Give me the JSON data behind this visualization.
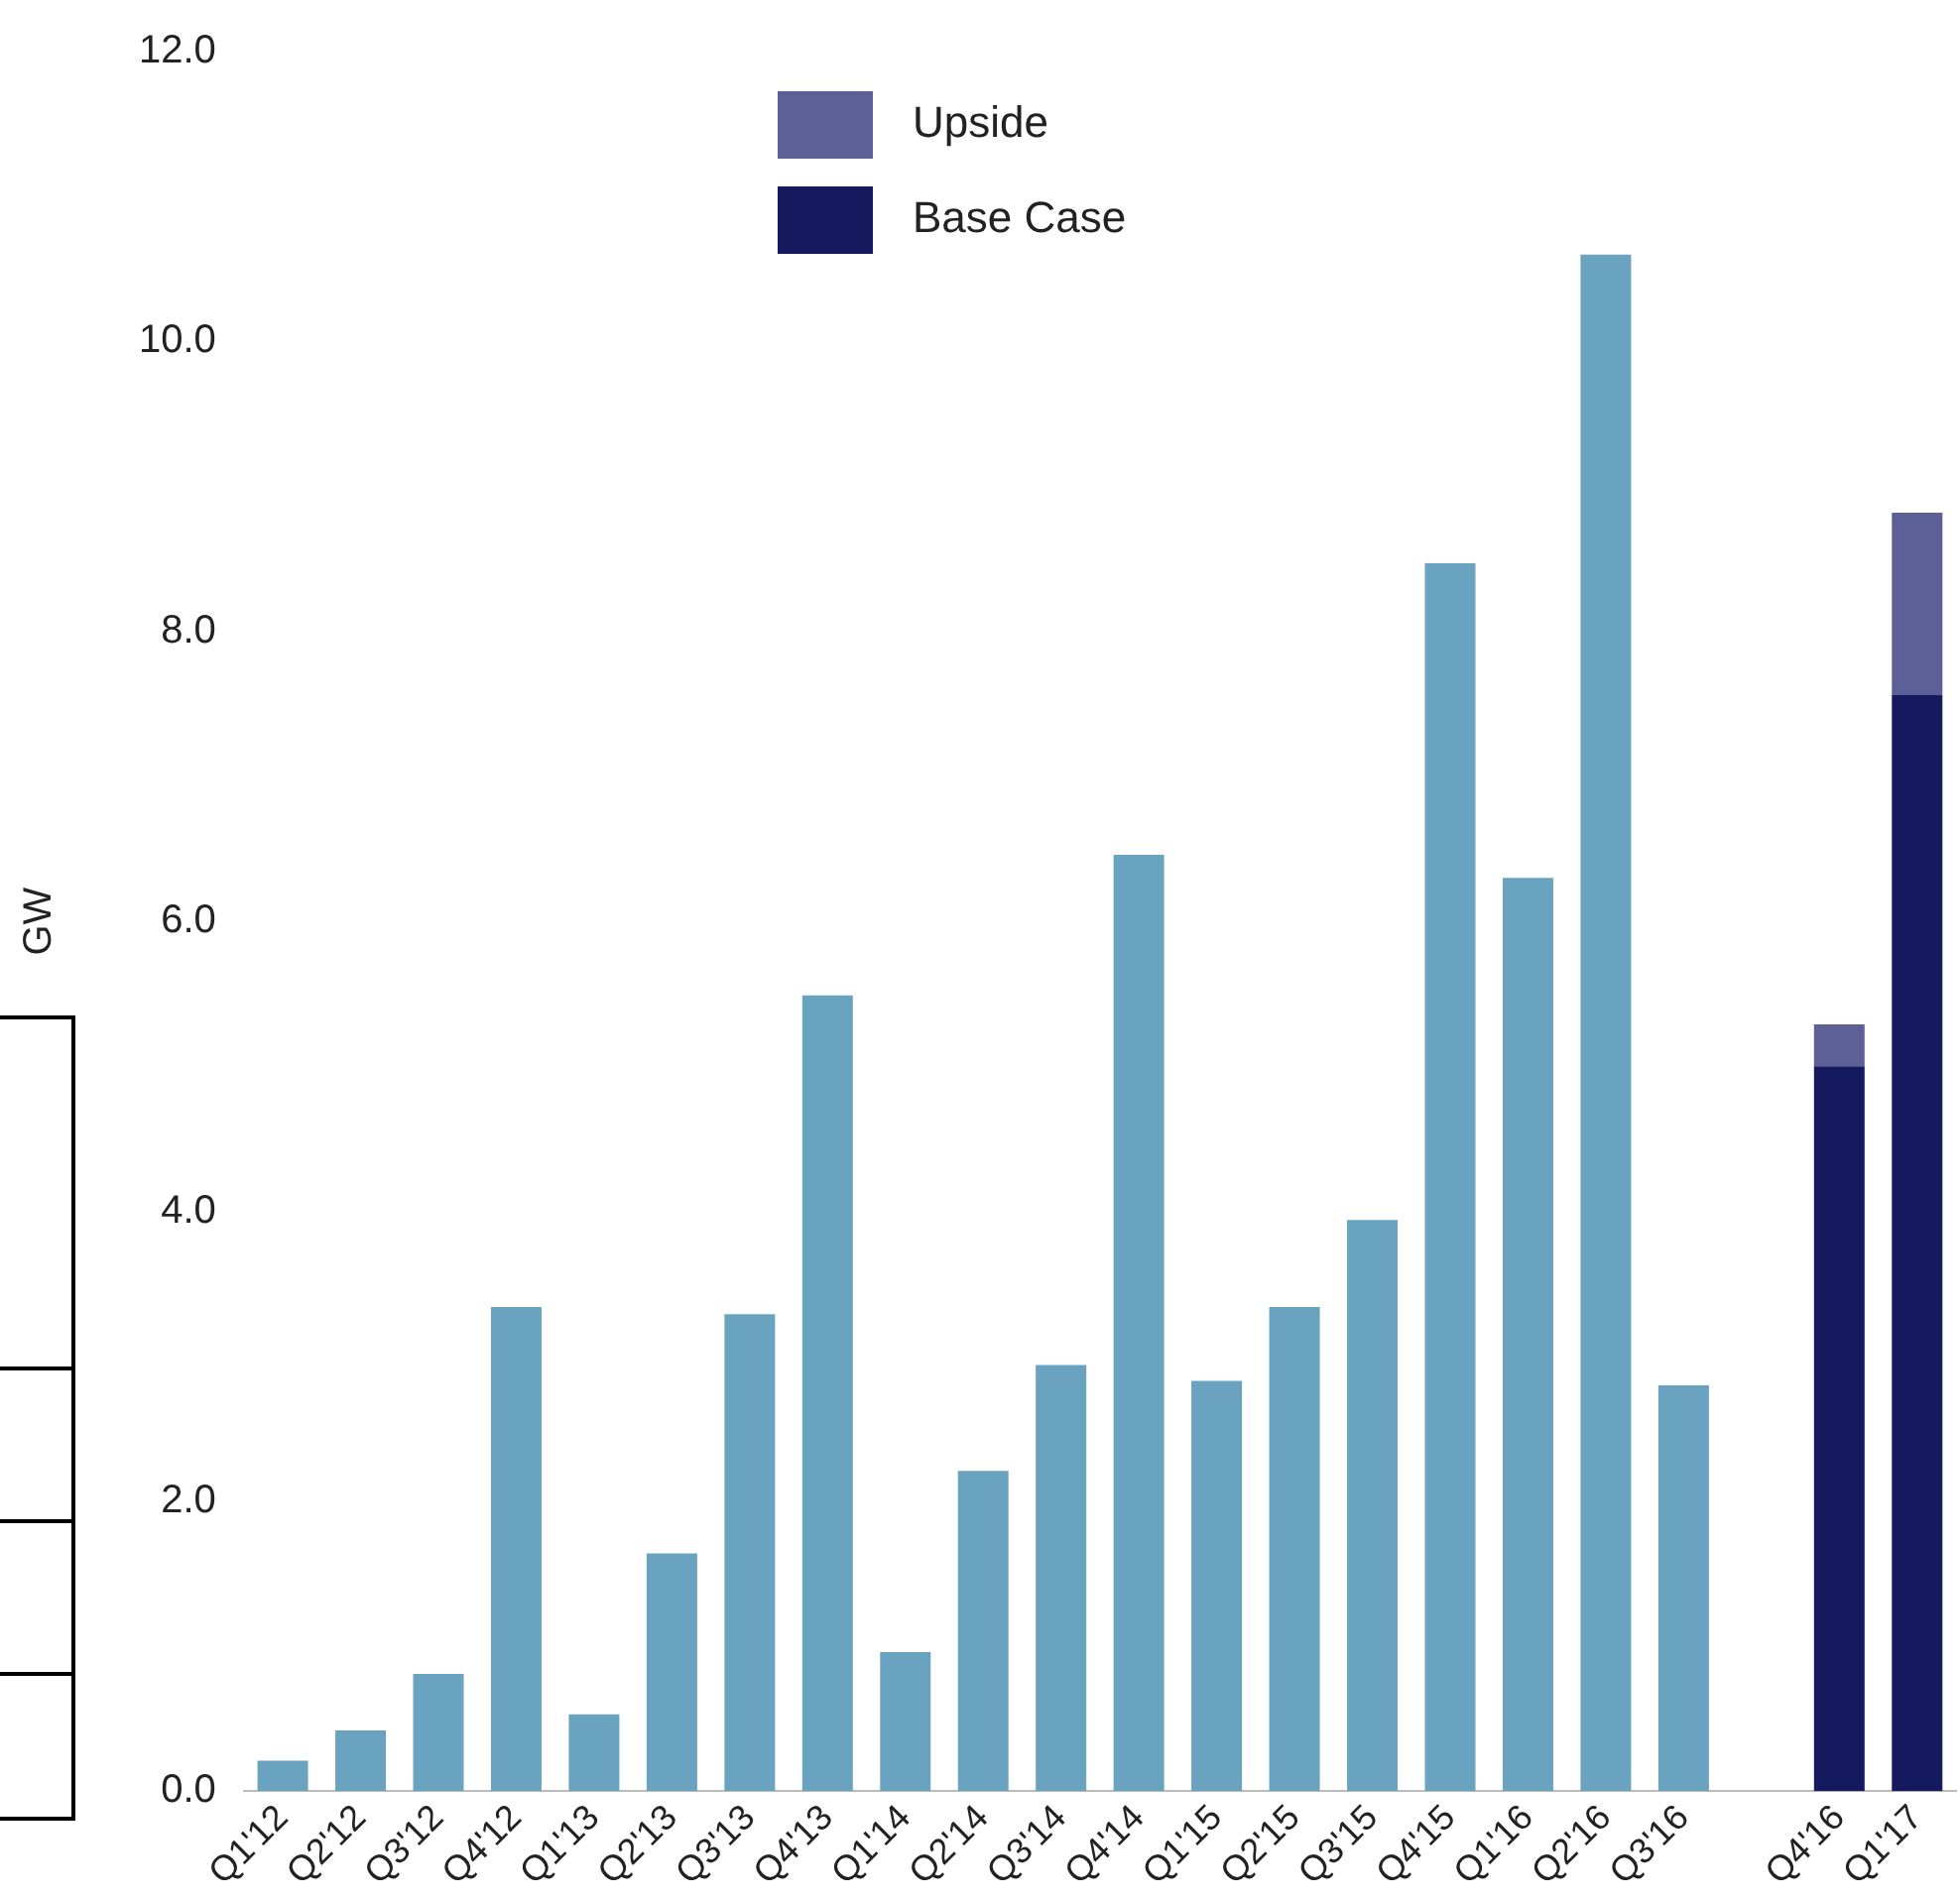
{
  "chart_data": {
    "type": "bar",
    "ylabel": "GW",
    "stacked": true,
    "categories": [
      "Q1'12",
      "Q2'12",
      "Q3'12",
      "Q4'12",
      "Q1'13",
      "Q2'13",
      "Q3'13",
      "Q4'13",
      "Q1'14",
      "Q2'14",
      "Q3'14",
      "Q4'14",
      "Q1'15",
      "Q2'15",
      "Q3'15",
      "Q4'15",
      "Q1'16",
      "Q2'16",
      "Q3'16",
      null,
      "Q4'16",
      "Q1'17"
    ],
    "series": [
      {
        "color": "#6aa3bf",
        "values": [
          0.21,
          0.42,
          0.81,
          3.34,
          0.53,
          1.64,
          3.29,
          5.49,
          0.96,
          2.21,
          2.94,
          6.46,
          2.83,
          3.34,
          3.94,
          8.47,
          6.3,
          10.6,
          2.8,
          null,
          null,
          null
        ]
      },
      {
        "name": "Base Case",
        "color": "#151a5e",
        "values": [
          null,
          null,
          null,
          null,
          null,
          null,
          null,
          null,
          null,
          null,
          null,
          null,
          null,
          null,
          null,
          null,
          null,
          null,
          null,
          null,
          5.0,
          7.56
        ]
      },
      {
        "name": "Upside",
        "color": "#5c6096",
        "values": [
          null,
          null,
          null,
          null,
          null,
          null,
          null,
          null,
          null,
          null,
          null,
          null,
          null,
          null,
          null,
          null,
          null,
          null,
          null,
          null,
          0.29,
          1.26
        ]
      }
    ],
    "ylim": [
      0,
      12
    ],
    "yticks": [
      {
        "value": 0,
        "label": "0.0"
      },
      {
        "value": 2,
        "label": "2.0"
      },
      {
        "value": 4,
        "label": "4.0"
      },
      {
        "value": 6,
        "label": "6.0"
      },
      {
        "value": 8,
        "label": "8.0"
      },
      {
        "value": 10,
        "label": "10.0"
      },
      {
        "value": 12,
        "label": "12.0"
      }
    ],
    "grid": false,
    "legend": "top"
  }
}
